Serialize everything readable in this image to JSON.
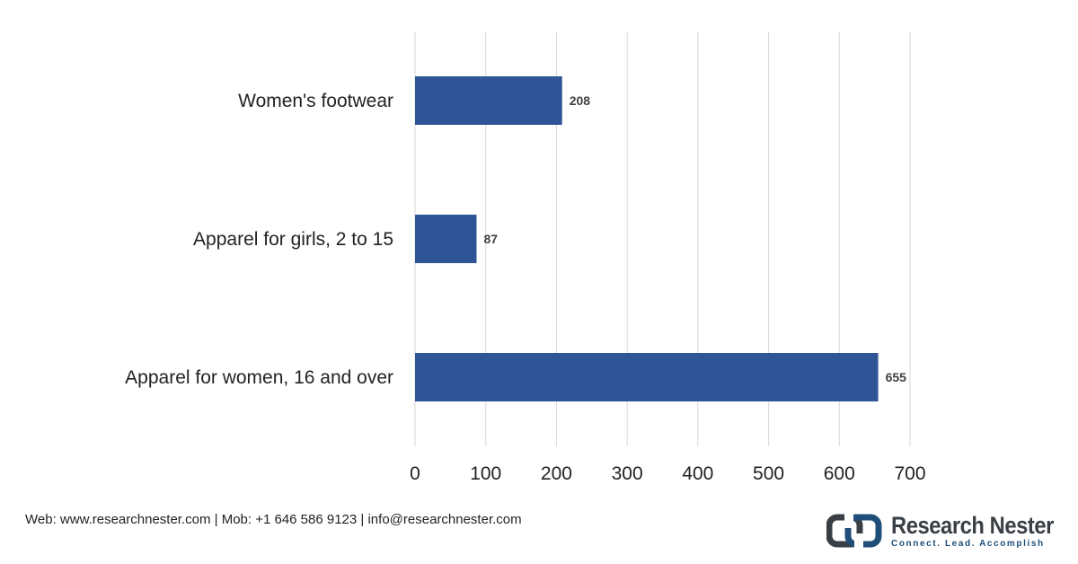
{
  "chart_data": {
    "type": "bar",
    "orientation": "horizontal",
    "categories": [
      "Women's footwear",
      "Apparel for girls, 2 to 15",
      "Apparel for women, 16 and over"
    ],
    "values": [
      208,
      87,
      655
    ],
    "data_labels": [
      "208",
      "87",
      "655"
    ],
    "xlim": [
      0,
      700
    ],
    "x_ticks": [
      0,
      100,
      200,
      300,
      400,
      500,
      600,
      700
    ],
    "x_tick_labels": [
      "0",
      "100",
      "200",
      "300",
      "400",
      "500",
      "600",
      "700"
    ],
    "grid": "vertical",
    "legend": "none",
    "bar_color": "#2f5597"
  },
  "footer": {
    "contact": "Web: www.researchnester.com | Mob: +1 646 586 9123 | info@researchnester.com"
  },
  "logo": {
    "name": "Research Nester",
    "tagline": "Connect. Lead. Accomplish",
    "icon": "research-nester-logo-icon"
  }
}
